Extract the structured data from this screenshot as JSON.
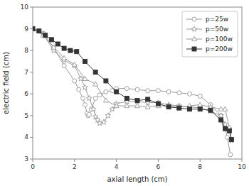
{
  "chart_data": {
    "type": "line",
    "title": "",
    "xlabel": "axial length (cm)",
    "ylabel": "electric field (cm)",
    "xlim": [
      0,
      10
    ],
    "ylim": [
      3,
      10
    ],
    "xticks": [
      0,
      2,
      4,
      6,
      8,
      10
    ],
    "yticks": [
      3,
      4,
      5,
      6,
      7,
      8,
      9,
      10
    ],
    "grid": false,
    "legend": "upper right",
    "series": [
      {
        "name": "p=25w",
        "color": "#999999",
        "marker": "circle",
        "x": [
          0.0,
          0.5,
          1.0,
          1.5,
          2.0,
          2.2,
          2.4,
          2.5,
          2.6,
          2.65,
          2.7,
          2.8,
          3.0,
          3.2,
          3.5,
          3.8,
          4.0,
          4.5,
          5.0,
          5.5,
          6.0,
          6.5,
          7.0,
          7.5,
          8.0,
          8.5,
          9.0,
          9.15,
          9.3,
          9.45
        ],
        "values": [
          9.0,
          8.8,
          8.15,
          7.3,
          6.6,
          6.2,
          5.8,
          5.5,
          5.1,
          5.0,
          5.05,
          5.3,
          5.8,
          5.95,
          6.1,
          6.15,
          6.25,
          6.25,
          6.2,
          6.15,
          6.15,
          6.1,
          6.05,
          6.0,
          5.9,
          5.5,
          5.0,
          4.6,
          4.0,
          3.2
        ]
      },
      {
        "name": "p=50w",
        "color": "#999999",
        "marker": "star",
        "x": [
          0.0,
          0.5,
          1.0,
          1.5,
          2.0,
          2.3,
          2.5,
          2.7,
          2.9,
          3.0,
          3.1,
          3.2,
          3.4,
          3.6,
          3.8,
          4.0,
          4.5,
          5.0,
          5.5,
          6.0,
          6.5,
          7.0,
          7.5,
          8.0,
          8.5,
          9.0,
          9.2,
          9.4,
          9.5
        ],
        "values": [
          9.0,
          8.75,
          8.0,
          7.55,
          7.3,
          6.7,
          6.3,
          5.8,
          5.3,
          4.95,
          4.8,
          4.65,
          4.7,
          5.0,
          5.3,
          5.55,
          5.65,
          5.65,
          5.6,
          5.6,
          5.5,
          5.45,
          5.4,
          5.35,
          5.2,
          5.0,
          4.6,
          4.4,
          3.85
        ]
      },
      {
        "name": "p=100w",
        "color": "#999999",
        "marker": "triangle",
        "x": [
          0.0,
          0.5,
          1.0,
          1.5,
          2.0,
          2.5,
          3.0,
          3.5,
          4.0,
          4.5,
          5.0,
          5.5,
          6.0,
          6.5,
          7.0,
          7.5,
          8.0,
          8.5,
          9.0,
          9.2,
          9.4,
          9.5
        ],
        "values": [
          9.0,
          8.7,
          8.15,
          7.65,
          7.35,
          6.7,
          6.45,
          5.7,
          5.45,
          5.45,
          5.45,
          5.4,
          5.45,
          5.45,
          5.4,
          5.45,
          5.5,
          5.4,
          5.3,
          5.3,
          4.45,
          3.9
        ]
      },
      {
        "name": "p=200w",
        "color": "#333333",
        "marker": "square",
        "x": [
          0.0,
          0.3,
          0.6,
          0.9,
          1.2,
          1.5,
          1.8,
          2.1,
          2.5,
          3.0,
          3.5,
          4.0,
          4.5,
          5.0,
          5.5,
          6.0,
          6.5,
          7.0,
          7.5,
          8.0,
          8.5,
          9.0,
          9.2,
          9.4,
          9.5
        ],
        "values": [
          9.0,
          8.9,
          8.7,
          8.5,
          8.3,
          8.1,
          8.0,
          7.95,
          7.5,
          7.0,
          6.6,
          6.1,
          5.8,
          5.7,
          5.75,
          5.55,
          5.4,
          5.35,
          5.3,
          5.3,
          5.25,
          4.8,
          4.4,
          4.3,
          3.9
        ]
      }
    ]
  }
}
